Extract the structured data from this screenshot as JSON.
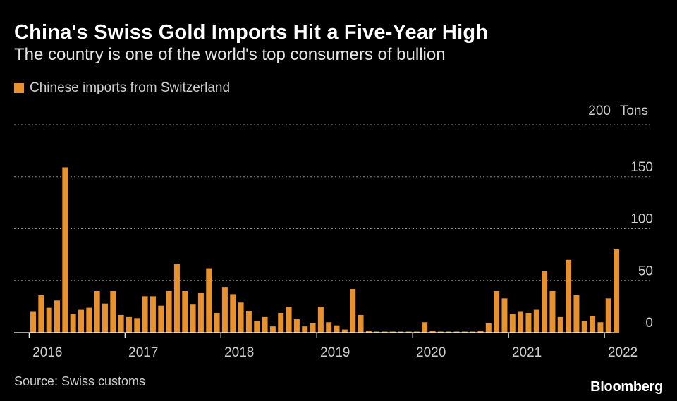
{
  "header": {
    "title": "China's Swiss Gold Imports Hit a Five-Year High",
    "subtitle": "The country is one of the world's top consumers of bullion"
  },
  "footer": {
    "source": "Source: Swiss customs",
    "brand": "Bloomberg"
  },
  "colors": {
    "bar": "#E8912F",
    "grid": "#8a8a8a",
    "axis": "#ffffff",
    "text": "#cfcfcf"
  },
  "chart_data": {
    "type": "bar",
    "series": [
      {
        "name": "Chinese imports from Switzerland",
        "start": "2016-01",
        "values": [
          20,
          36,
          24,
          31,
          159,
          18,
          22,
          24,
          40,
          28,
          40,
          17,
          15,
          14,
          35,
          35,
          26,
          40,
          66,
          40,
          27,
          38,
          62,
          19,
          44,
          37,
          29,
          21,
          11,
          15,
          6,
          19,
          25,
          13,
          6,
          9,
          25,
          10,
          7,
          3,
          42,
          17,
          2,
          1,
          1,
          1,
          1,
          1,
          1,
          10,
          2,
          1,
          1,
          1,
          1,
          1,
          2,
          9,
          40,
          33,
          18,
          20,
          19,
          22,
          59,
          40,
          15,
          70,
          36,
          11,
          16,
          10,
          33,
          80
        ]
      }
    ],
    "unit": "Tons",
    "yticks": [
      {
        "value": 0,
        "label": "0"
      },
      {
        "value": 50,
        "label": "50"
      },
      {
        "value": 100,
        "label": "100"
      },
      {
        "value": 150,
        "label": "150"
      },
      {
        "value": 200,
        "label": "200"
      }
    ],
    "xticks": [
      {
        "date": "2016-01",
        "label": "2016"
      },
      {
        "date": "2017-01",
        "label": "2017"
      },
      {
        "date": "2018-01",
        "label": "2018"
      },
      {
        "date": "2019-01",
        "label": "2019"
      },
      {
        "date": "2020-01",
        "label": "2020"
      },
      {
        "date": "2021-01",
        "label": "2021"
      },
      {
        "date": "2022-01",
        "label": "2022"
      }
    ],
    "ylim": [
      0,
      200
    ],
    "grid": true,
    "legend_position": "top-left"
  }
}
